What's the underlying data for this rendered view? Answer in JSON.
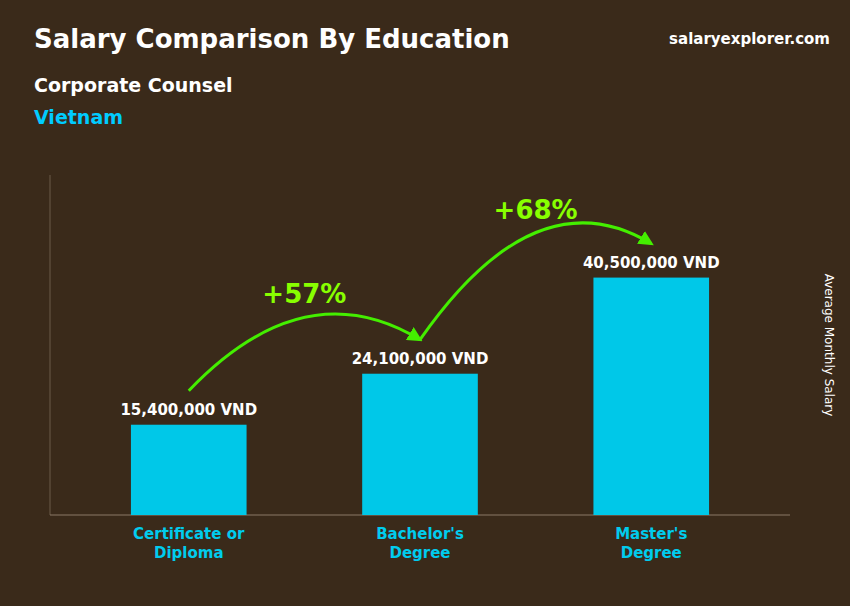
{
  "chart_data": {
    "type": "bar",
    "title": "Salary Comparison By Education",
    "subtitle": [
      "Corporate Counsel",
      "Vietnam"
    ],
    "categories": [
      "Certificate or\nDiploma",
      "Bachelor's\nDegree",
      "Master's\nDegree"
    ],
    "values": [
      15400000,
      24100000,
      40500000
    ],
    "value_labels": [
      "15,400,000 VND",
      "24,100,000 VND",
      "40,500,000 VND"
    ],
    "data_labels": true,
    "color": "#00c8e8",
    "ylabel": "Average Monthly Salary",
    "xlim": [
      -0.6,
      2.6
    ],
    "ylim": [
      0,
      58000000
    ],
    "tick_labels": "x",
    "grid": false,
    "annotations": [
      {
        "text": "+57%",
        "color": "#88ff00",
        "arrow_color": "#44ee00"
      },
      {
        "text": "+68%",
        "color": "#88ff00",
        "arrow_color": "#44ee00"
      },
      {
        "text": "salaryexplorer.com"
      }
    ]
  }
}
